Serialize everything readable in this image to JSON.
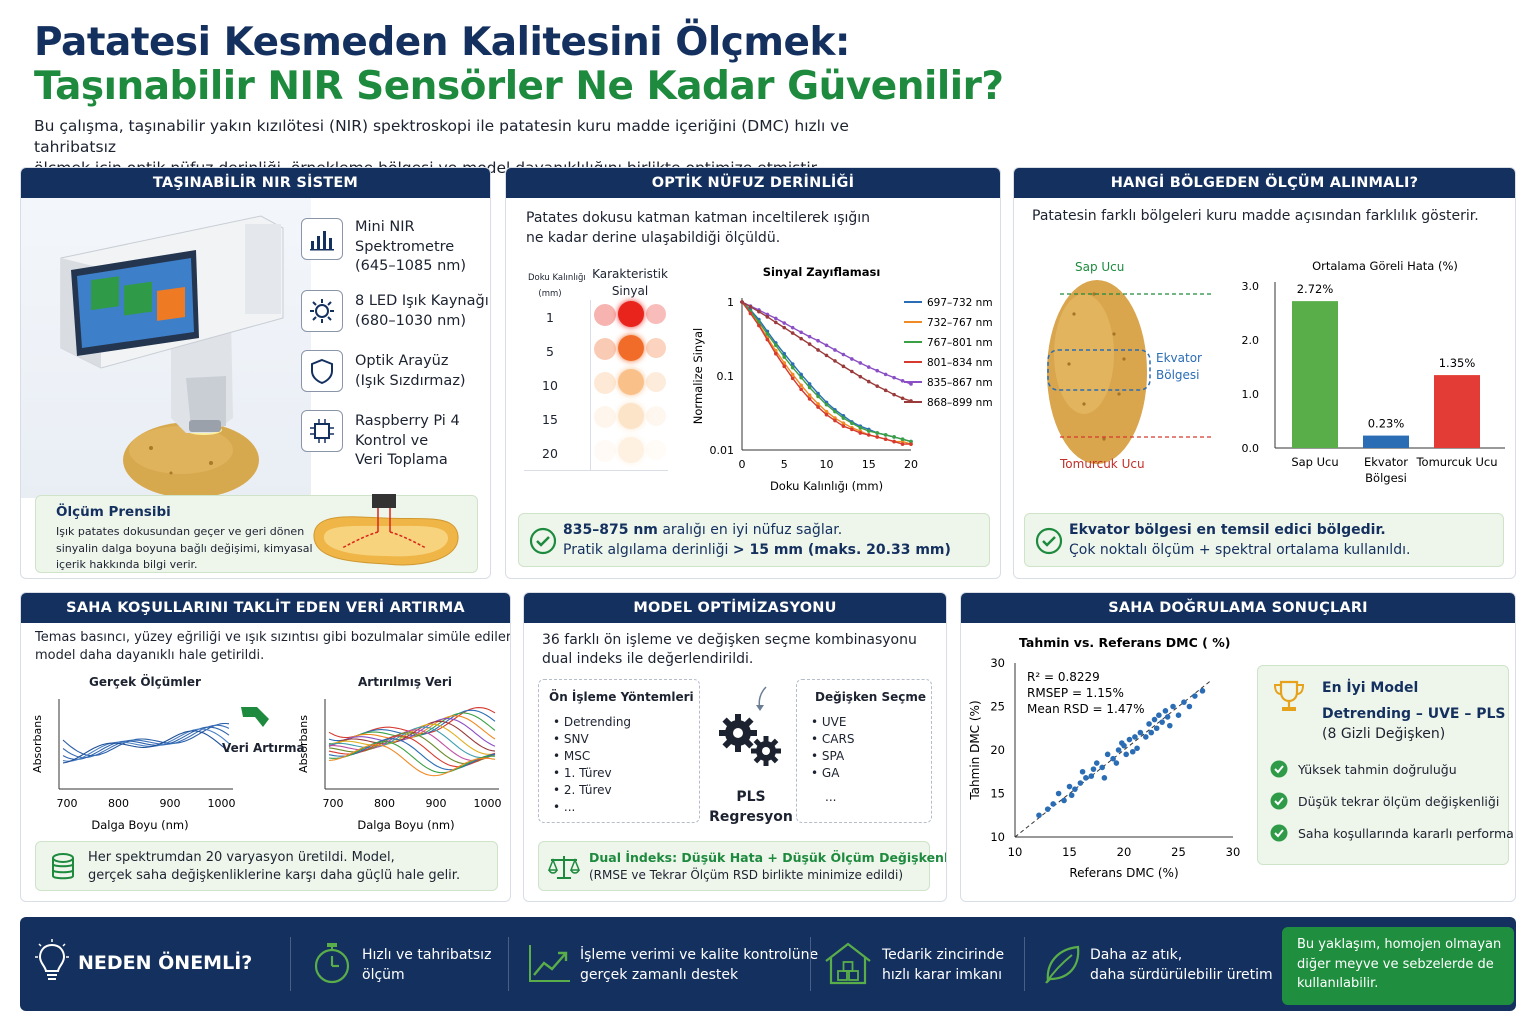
{
  "header": {
    "title_line1": "Patatesi Kesmeden Kalitesini Ölçmek:",
    "title_line2": "Taşınabilir NIR Sensörler Ne Kadar Güvenilir?",
    "intro_line1": "Bu çalışma, taşınabilir yakın kızılötesi (NIR) spektroskopi ile patatesin kuru madde içeriğini (DMC) hızlı ve tahribatsız",
    "intro_line2": "ölçmek için optik nüfuz derinliği, örnekleme bölgesi ve model dayanıklılığını birlikte optimize etmiştir."
  },
  "panel1": {
    "title": "TAŞINABİLİR NIR SİSTEM",
    "items": [
      {
        "l1": "Mini NIR",
        "l2": "Spektrometre",
        "l3": "(645–1085 nm)"
      },
      {
        "l1": "8 LED Işık Kaynağı",
        "l2": "(680–1030 nm)",
        "l3": ""
      },
      {
        "l1": "Optik Arayüz",
        "l2": "(Işık Sızdırmaz)",
        "l3": ""
      },
      {
        "l1": "Raspberry Pi 4",
        "l2": "Kontrol ve",
        "l3": "Veri Toplama"
      }
    ],
    "principle_title": "Ölçüm Prensibi",
    "principle_l1": "Işık patates dokusundan geçer ve geri dönen",
    "principle_l2": "sinyalin dalga boyuna bağlı değişimi, kimyasal",
    "principle_l3": "içerik hakkında bilgi verir."
  },
  "panel2": {
    "title": "OPTİK NÜFUZ DERİNLİĞİ",
    "desc_l1": "Patates dokusu katman katman inceltilerek ışığın",
    "desc_l2": "ne kadar derine ulaşabildiği ölçüldü.",
    "col1_l1": "Doku Kalınlığı",
    "col1_l2": "(mm)",
    "col2_l1": "Karakteristik",
    "col2_l2": "Sinyal",
    "thickness": [
      "1",
      "5",
      "10",
      "15",
      "20"
    ],
    "note_b1": "835–875 nm",
    "note_t1": " aralığı en iyi nüfuz sağlar.",
    "note_t2": "Pratik algılama derinliği ",
    "note_b2": "> 15 mm (maks. 20.33 mm)"
  },
  "panel3": {
    "title": "HANGİ BÖLGEDEN ÖLÇÜM ALINMALI?",
    "desc": "Patatesin farklı bölgeleri kuru madde açısından farklılık gösterir.",
    "label_top": "Sap Ucu",
    "label_mid_l1": "Ekvator",
    "label_mid_l2": "Bölgesi",
    "label_bottom": "Tomurcuk Ucu",
    "note_b": "Ekvator bölgesi en temsil edici bölgedir.",
    "note_t": "Çok noktalı ölçüm + spektral ortalama kullanıldı."
  },
  "panel4": {
    "title": "SAHA KOŞULLARINI TAKLİT EDEN VERİ ARTIRMA",
    "desc_l1": "Temas basıncı, yüzey eğriliği ve ışık sızıntısı gibi bozulmalar simüle edilerek",
    "desc_l2": "model daha dayanıklı hale getirildi.",
    "left_title": "Gerçek Ölçümler",
    "right_title": "Artırılmış Veri",
    "arrow_label": "Veri Artırma",
    "ylabel": "Absorbans",
    "xlabel": "Dalga Boyu (nm)",
    "xticks": [
      "700",
      "800",
      "900",
      "1000"
    ],
    "note_l1": "Her spektrumdan 20 varyasyon üretildi. Model,",
    "note_l2": "gerçek saha değişkenliklerine karşı daha güçlü hale gelir."
  },
  "panel5": {
    "title": "MODEL OPTİMİZASYONU",
    "desc_l1": "36 farklı ön işleme ve değişken seçme kombinasyonu",
    "desc_l2": "dual indeks ile değerlendirildi.",
    "pre_title": "Ön İşleme Yöntemleri",
    "pre_items": [
      "Detrending",
      "SNV",
      "MSC",
      "1. Türev",
      "2. Türev",
      "..."
    ],
    "sel_title": "Değişken Seçme",
    "sel_items": [
      "UVE",
      "CARS",
      "SPA",
      "GA"
    ],
    "sel_more": "...",
    "center_l1": "PLS",
    "center_l2": "Regresyon",
    "note_l1": "Dual İndeks: Düşük Hata + Düşük Ölçüm Değişkenliği",
    "note_l2": "(RMSE ve Tekrar Ölçüm RSD birlikte minimize edildi)"
  },
  "panel6": {
    "title": "SAHA DOĞRULAMA SONUÇLARI",
    "best_title": "En İyi Model",
    "best_l1": "Detrending – UVE – PLS",
    "best_l2": "(8 Gizli Değişken)",
    "checks": [
      "Yüksek tahmin doğruluğu",
      "Düşük tekrar ölçüm değişkenliği",
      "Saha koşullarında kararlı performans"
    ]
  },
  "bottom": {
    "title": "NEDEN ÖNEMLİ?",
    "items": [
      {
        "l1": "Hızlı ve tahribatsız",
        "l2": "ölçüm"
      },
      {
        "l1": "İşleme verimi ve kalite kontrolüne",
        "l2": "gerçek zamanlı destek"
      },
      {
        "l1": "Tedarik zincirinde",
        "l2": "hızlı karar imkanı"
      },
      {
        "l1": "Daha az atık,",
        "l2": "daha sürdürülebilir üretim"
      }
    ],
    "callout_l1": "Bu yaklaşım, homojen olmayan",
    "callout_l2": "diğer meyve ve sebzelerde de",
    "callout_l3": "kullanılabilir."
  },
  "chart_data": [
    {
      "type": "line",
      "title": "Sinyal Zayıflaması",
      "xlabel": "Doku Kalınlığı (mm)",
      "ylabel": "Normalize Sinyal",
      "yscale": "log",
      "xlim": [
        0,
        20
      ],
      "ylim": [
        0.01,
        1
      ],
      "xticks": [
        "0",
        "5",
        "10",
        "15",
        "20"
      ],
      "yticks": [
        "1",
        "0.1",
        "0.01"
      ],
      "x": [
        0,
        1,
        2,
        3,
        4,
        5,
        6,
        7,
        8,
        9,
        10,
        11,
        12,
        13,
        14,
        15,
        16,
        17,
        18,
        19,
        20
      ],
      "legend": "right",
      "series": [
        {
          "name": "697–732 nm",
          "color": "#2a6db5",
          "values": [
            1,
            0.78,
            0.58,
            0.4,
            0.28,
            0.2,
            0.145,
            0.105,
            0.078,
            0.058,
            0.044,
            0.035,
            0.029,
            0.024,
            0.021,
            0.019,
            0.017,
            0.016,
            0.015,
            0.014,
            0.013
          ]
        },
        {
          "name": "732–767 nm",
          "color": "#f08a24",
          "values": [
            1,
            0.72,
            0.5,
            0.33,
            0.22,
            0.15,
            0.105,
            0.075,
            0.055,
            0.042,
            0.033,
            0.027,
            0.023,
            0.02,
            0.018,
            0.016,
            0.015,
            0.014,
            0.013,
            0.013,
            0.012
          ]
        },
        {
          "name": "767–801 nm",
          "color": "#3aa043",
          "values": [
            1,
            0.75,
            0.54,
            0.37,
            0.26,
            0.18,
            0.13,
            0.095,
            0.07,
            0.053,
            0.041,
            0.033,
            0.027,
            0.023,
            0.02,
            0.018,
            0.017,
            0.016,
            0.015,
            0.014,
            0.013
          ]
        },
        {
          "name": "801–834 nm",
          "color": "#d63a2f",
          "values": [
            1,
            0.7,
            0.48,
            0.31,
            0.2,
            0.135,
            0.093,
            0.066,
            0.049,
            0.038,
            0.03,
            0.025,
            0.021,
            0.019,
            0.017,
            0.016,
            0.015,
            0.014,
            0.013,
            0.012,
            0.012
          ]
        },
        {
          "name": "835–867 nm",
          "color": "#8a4fc4",
          "values": [
            1,
            0.88,
            0.78,
            0.68,
            0.6,
            0.52,
            0.45,
            0.39,
            0.34,
            0.3,
            0.26,
            0.225,
            0.195,
            0.17,
            0.15,
            0.132,
            0.118,
            0.105,
            0.095,
            0.086,
            0.078
          ]
        },
        {
          "name": "868–899 nm",
          "color": "#9a3a3a",
          "values": [
            1,
            0.86,
            0.74,
            0.63,
            0.53,
            0.45,
            0.38,
            0.32,
            0.27,
            0.225,
            0.19,
            0.16,
            0.135,
            0.115,
            0.098,
            0.084,
            0.073,
            0.064,
            0.056,
            0.05,
            0.046
          ]
        }
      ]
    },
    {
      "type": "bar",
      "title": "Ortalama Göreli Hata (%)",
      "categories": [
        "Sap Ucu",
        "Ekvator\nBölgesi",
        "Tomurcuk Ucu"
      ],
      "values": [
        2.72,
        0.23,
        1.35
      ],
      "labels": [
        "2.72%",
        "0.23%",
        "1.35%"
      ],
      "colors": [
        "#5aae4a",
        "#2a6db5",
        "#e33b35"
      ],
      "ylim": [
        0,
        3
      ],
      "yticks": [
        "0.0",
        "1.0",
        "2.0",
        "3.0"
      ]
    },
    {
      "type": "scatter",
      "title": "Tahmin vs. Referans DMC ( %)",
      "xlabel": "Referans DMC (%)",
      "ylabel": "Tahmin DMC (%)",
      "xlim": [
        10,
        30
      ],
      "ylim": [
        10,
        30
      ],
      "xticks": [
        "10",
        "15",
        "20",
        "25",
        "30"
      ],
      "yticks": [
        "10",
        "15",
        "20",
        "25",
        "30"
      ],
      "stats": [
        "R² = 0.8229",
        "RMSEP = 1.15%",
        "Mean RSD = 1.47%"
      ],
      "x": [
        12.2,
        13,
        14.5,
        15,
        15.2,
        15.5,
        16,
        16.2,
        17,
        17.5,
        18,
        18.2,
        18.5,
        19,
        19.3,
        19.5,
        20,
        20.2,
        20.5,
        21,
        21.2,
        21.5,
        22,
        22.3,
        22.5,
        23,
        23.2,
        23.5,
        24,
        24.2,
        24.5,
        25,
        25.5,
        26,
        26.5,
        27.2,
        13.5,
        14,
        16.5,
        17.2,
        20.8,
        22.8,
        23.8,
        19.8
      ],
      "y": [
        12.5,
        13.2,
        14.2,
        15.8,
        14.8,
        15.5,
        16.2,
        17.5,
        17,
        18.5,
        18,
        16.8,
        19.5,
        19,
        18.5,
        20,
        20.5,
        19.5,
        21.2,
        21.5,
        20.2,
        22,
        21.5,
        23,
        22,
        22.5,
        24,
        23.2,
        23.8,
        22.8,
        25,
        24,
        25.5,
        25,
        26.2,
        26.8,
        13.8,
        15,
        16.8,
        17.8,
        19.8,
        23.5,
        24.5,
        20.8
      ]
    }
  ]
}
